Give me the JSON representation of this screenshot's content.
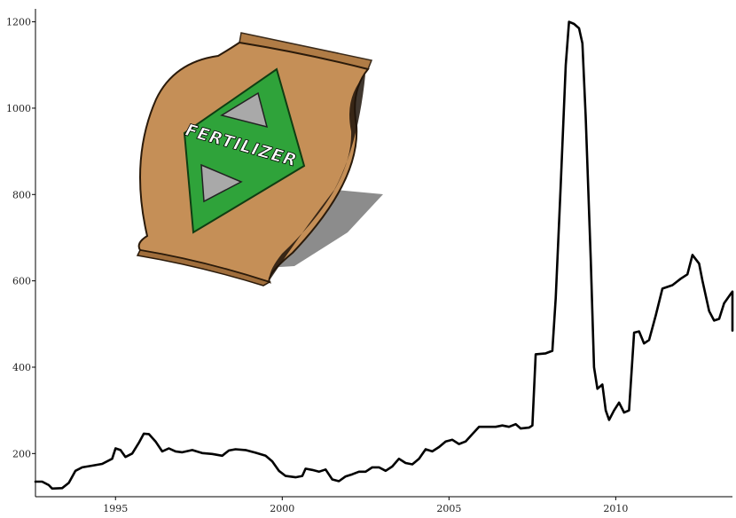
{
  "chart_data": {
    "type": "line",
    "title": "",
    "xlabel": "",
    "ylabel": "",
    "xlim": [
      1992.6,
      2013.5
    ],
    "ylim": [
      100,
      1230
    ],
    "x_ticks": [
      1995,
      2000,
      2005,
      2010
    ],
    "y_ticks": [
      200,
      400,
      600,
      800,
      1000,
      1200
    ],
    "grid": false,
    "series": [
      {
        "values": [
          [
            1992.6,
            135
          ],
          [
            1992.8,
            135
          ],
          [
            1993.0,
            127
          ],
          [
            1993.1,
            119
          ],
          [
            1993.4,
            120
          ],
          [
            1993.6,
            132
          ],
          [
            1993.8,
            160
          ],
          [
            1994.0,
            168
          ],
          [
            1994.3,
            172
          ],
          [
            1994.6,
            176
          ],
          [
            1994.9,
            188
          ],
          [
            1995.0,
            212
          ],
          [
            1995.15,
            208
          ],
          [
            1995.3,
            192
          ],
          [
            1995.5,
            200
          ],
          [
            1995.7,
            225
          ],
          [
            1995.85,
            246
          ],
          [
            1996.0,
            245
          ],
          [
            1996.2,
            228
          ],
          [
            1996.4,
            205
          ],
          [
            1996.6,
            212
          ],
          [
            1996.8,
            205
          ],
          [
            1997.0,
            203
          ],
          [
            1997.3,
            208
          ],
          [
            1997.6,
            201
          ],
          [
            1997.9,
            199
          ],
          [
            1998.2,
            195
          ],
          [
            1998.4,
            207
          ],
          [
            1998.6,
            210
          ],
          [
            1998.9,
            208
          ],
          [
            1999.2,
            202
          ],
          [
            1999.5,
            195
          ],
          [
            1999.7,
            182
          ],
          [
            1999.9,
            160
          ],
          [
            2000.1,
            148
          ],
          [
            2000.4,
            145
          ],
          [
            2000.6,
            148
          ],
          [
            2000.7,
            165
          ],
          [
            2000.9,
            162
          ],
          [
            2001.1,
            158
          ],
          [
            2001.3,
            163
          ],
          [
            2001.5,
            140
          ],
          [
            2001.7,
            136
          ],
          [
            2001.9,
            147
          ],
          [
            2002.1,
            152
          ],
          [
            2002.3,
            158
          ],
          [
            2002.5,
            158
          ],
          [
            2002.7,
            168
          ],
          [
            2002.9,
            168
          ],
          [
            2003.1,
            160
          ],
          [
            2003.3,
            170
          ],
          [
            2003.5,
            188
          ],
          [
            2003.7,
            178
          ],
          [
            2003.9,
            175
          ],
          [
            2004.1,
            188
          ],
          [
            2004.3,
            210
          ],
          [
            2004.5,
            205
          ],
          [
            2004.7,
            215
          ],
          [
            2004.9,
            228
          ],
          [
            2005.1,
            232
          ],
          [
            2005.3,
            222
          ],
          [
            2005.5,
            228
          ],
          [
            2005.7,
            245
          ],
          [
            2005.9,
            262
          ],
          [
            2006.1,
            262
          ],
          [
            2006.4,
            262
          ],
          [
            2006.6,
            265
          ],
          [
            2006.8,
            262
          ],
          [
            2007.0,
            268
          ],
          [
            2007.15,
            258
          ],
          [
            2007.4,
            260
          ],
          [
            2007.5,
            265
          ],
          [
            2007.6,
            430
          ],
          [
            2007.9,
            432
          ],
          [
            2008.1,
            438
          ],
          [
            2008.2,
            560
          ],
          [
            2008.35,
            820
          ],
          [
            2008.5,
            1100
          ],
          [
            2008.6,
            1200
          ],
          [
            2008.75,
            1195
          ],
          [
            2008.9,
            1185
          ],
          [
            2009.0,
            1150
          ],
          [
            2009.1,
            980
          ],
          [
            2009.25,
            650
          ],
          [
            2009.35,
            400
          ],
          [
            2009.45,
            350
          ],
          [
            2009.6,
            360
          ],
          [
            2009.7,
            300
          ],
          [
            2009.8,
            278
          ],
          [
            2009.95,
            300
          ],
          [
            2010.1,
            318
          ],
          [
            2010.25,
            295
          ],
          [
            2010.4,
            300
          ],
          [
            2010.55,
            480
          ],
          [
            2010.7,
            483
          ],
          [
            2010.85,
            455
          ],
          [
            2011.0,
            463
          ],
          [
            2011.2,
            520
          ],
          [
            2011.4,
            582
          ],
          [
            2011.7,
            590
          ],
          [
            2011.95,
            605
          ],
          [
            2012.15,
            615
          ],
          [
            2012.3,
            660
          ],
          [
            2012.5,
            640
          ],
          [
            2012.6,
            600
          ],
          [
            2012.8,
            530
          ],
          [
            2012.95,
            508
          ],
          [
            2013.1,
            512
          ],
          [
            2013.25,
            548
          ],
          [
            2013.45,
            570
          ],
          [
            2013.65,
            575
          ],
          [
            2013.75,
            550
          ],
          [
            2013.85,
            485
          ],
          [
            2014.0,
            485
          ]
        ]
      }
    ],
    "colors": {
      "line": "#000000",
      "bag_body": "#c58f57",
      "bag_diamond": "#2fa33a",
      "bag_triangle": "#a9a9a9"
    }
  },
  "illustration": {
    "label": "FERTILIZER"
  }
}
